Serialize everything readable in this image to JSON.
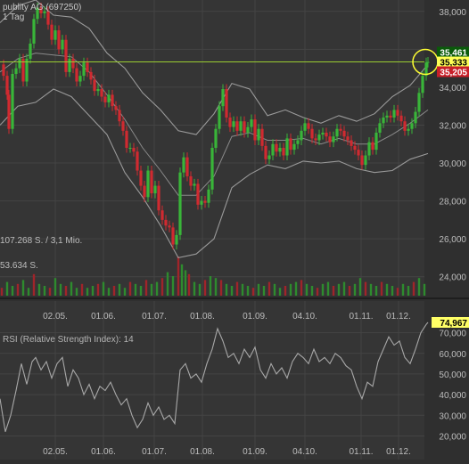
{
  "chart_data": [
    {
      "type": "candlestick",
      "title": "publity AG (697250)",
      "subtitle": "1 Tag",
      "x_ticks": [
        "02.05.",
        "01.06.",
        "01.07.",
        "01.08.",
        "01.09.",
        "04.10.",
        "01.11.",
        "01.12."
      ],
      "y_ticks": [
        "24,000",
        "26,000",
        "28,000",
        "30,000",
        "32,000",
        "34,000",
        "36,000",
        "38,000"
      ],
      "ylim": [
        23000,
        38600
      ],
      "price_labels": {
        "high": {
          "text": "35,461",
          "value": 35461,
          "color": "#0a5a0a"
        },
        "last": {
          "text": "35,333",
          "value": 35333,
          "color": "#ffff55"
        },
        "low": {
          "text": "35,205",
          "value": 35205,
          "color": "#c81e28"
        }
      },
      "reference_line": {
        "value": 35333,
        "color": "#9acd32"
      },
      "volume_labels": [
        "107.268 S. / 3,1 Mio.",
        "53.634 S."
      ],
      "price_path": [
        [
          0,
          35200
        ],
        [
          4,
          34600
        ],
        [
          8,
          33600
        ],
        [
          10,
          31800
        ],
        [
          14,
          34700
        ],
        [
          18,
          35000
        ],
        [
          22,
          35500
        ],
        [
          26,
          34300
        ],
        [
          30,
          35500
        ],
        [
          34,
          36300
        ],
        [
          38,
          37600
        ],
        [
          42,
          38200
        ],
        [
          46,
          37900
        ],
        [
          50,
          38000
        ],
        [
          54,
          37300
        ],
        [
          58,
          36500
        ],
        [
          62,
          37000
        ],
        [
          66,
          36000
        ],
        [
          70,
          36500
        ],
        [
          74,
          34800
        ],
        [
          78,
          35500
        ],
        [
          82,
          35000
        ],
        [
          86,
          34300
        ],
        [
          90,
          34600
        ],
        [
          94,
          35300
        ],
        [
          98,
          34800
        ],
        [
          102,
          34400
        ],
        [
          106,
          33800
        ],
        [
          110,
          33900
        ],
        [
          114,
          33500
        ],
        [
          118,
          33200
        ],
        [
          122,
          33600
        ],
        [
          126,
          33000
        ],
        [
          130,
          32800
        ],
        [
          134,
          32200
        ],
        [
          138,
          31700
        ],
        [
          142,
          30800
        ],
        [
          146,
          30800
        ],
        [
          150,
          30600
        ],
        [
          154,
          29600
        ],
        [
          158,
          28800
        ],
        [
          162,
          28200
        ],
        [
          166,
          29600
        ],
        [
          170,
          28400
        ],
        [
          174,
          28800
        ],
        [
          178,
          27500
        ],
        [
          182,
          27000
        ],
        [
          186,
          26700
        ],
        [
          190,
          26600
        ],
        [
          194,
          25700
        ],
        [
          198,
          26200
        ],
        [
          202,
          29500
        ],
        [
          206,
          30300
        ],
        [
          210,
          29300
        ],
        [
          214,
          28800
        ],
        [
          218,
          28900
        ],
        [
          222,
          27800
        ],
        [
          226,
          28000
        ],
        [
          230,
          27900
        ],
        [
          234,
          28600
        ],
        [
          238,
          30800
        ],
        [
          242,
          31800
        ],
        [
          246,
          33000
        ],
        [
          250,
          33900
        ],
        [
          254,
          32400
        ],
        [
          258,
          31900
        ],
        [
          262,
          32200
        ],
        [
          266,
          31700
        ],
        [
          270,
          32200
        ],
        [
          274,
          31600
        ],
        [
          278,
          31900
        ],
        [
          282,
          32300
        ],
        [
          286,
          31200
        ],
        [
          290,
          31800
        ],
        [
          294,
          30900
        ],
        [
          298,
          30200
        ],
        [
          302,
          30400
        ],
        [
          306,
          31000
        ],
        [
          310,
          30600
        ],
        [
          314,
          30800
        ],
        [
          318,
          30400
        ],
        [
          322,
          31300
        ],
        [
          326,
          30700
        ],
        [
          330,
          31000
        ],
        [
          334,
          31200
        ],
        [
          338,
          31700
        ],
        [
          342,
          32100
        ],
        [
          346,
          31800
        ],
        [
          350,
          31300
        ],
        [
          354,
          31200
        ],
        [
          358,
          31500
        ],
        [
          362,
          31600
        ],
        [
          366,
          31400
        ],
        [
          370,
          31100
        ],
        [
          374,
          31400
        ],
        [
          378,
          31800
        ],
        [
          382,
          31700
        ],
        [
          386,
          31400
        ],
        [
          390,
          31200
        ],
        [
          394,
          30900
        ],
        [
          398,
          30700
        ],
        [
          402,
          30400
        ],
        [
          406,
          29900
        ],
        [
          410,
          30400
        ],
        [
          414,
          31100
        ],
        [
          418,
          30700
        ],
        [
          422,
          31600
        ],
        [
          426,
          32100
        ],
        [
          430,
          32400
        ],
        [
          434,
          32500
        ],
        [
          438,
          32400
        ],
        [
          442,
          32800
        ],
        [
          446,
          32500
        ],
        [
          450,
          32200
        ],
        [
          454,
          31700
        ],
        [
          458,
          31800
        ],
        [
          462,
          32100
        ],
        [
          466,
          32700
        ],
        [
          470,
          33700
        ],
        [
          474,
          34600
        ],
        [
          478,
          35300
        ],
        [
          480,
          35333
        ]
      ],
      "bollinger_upper": [
        [
          0,
          37400
        ],
        [
          20,
          38300
        ],
        [
          40,
          38600
        ],
        [
          60,
          37800
        ],
        [
          80,
          37700
        ],
        [
          100,
          37100
        ],
        [
          120,
          35800
        ],
        [
          140,
          35000
        ],
        [
          160,
          33700
        ],
        [
          180,
          32800
        ],
        [
          200,
          31700
        ],
        [
          220,
          31500
        ],
        [
          240,
          32600
        ],
        [
          260,
          34200
        ],
        [
          280,
          33900
        ],
        [
          300,
          32500
        ],
        [
          320,
          32800
        ],
        [
          340,
          32400
        ],
        [
          360,
          32100
        ],
        [
          380,
          32500
        ],
        [
          400,
          32200
        ],
        [
          420,
          32600
        ],
        [
          440,
          33500
        ],
        [
          460,
          34100
        ],
        [
          480,
          35200
        ]
      ],
      "bollinger_lower": [
        [
          0,
          32000
        ],
        [
          20,
          33000
        ],
        [
          40,
          33200
        ],
        [
          60,
          33900
        ],
        [
          80,
          33500
        ],
        [
          100,
          32500
        ],
        [
          120,
          31500
        ],
        [
          140,
          29500
        ],
        [
          160,
          28200
        ],
        [
          180,
          26700
        ],
        [
          200,
          25000
        ],
        [
          220,
          25200
        ],
        [
          240,
          26000
        ],
        [
          260,
          28700
        ],
        [
          280,
          29400
        ],
        [
          300,
          29900
        ],
        [
          320,
          29700
        ],
        [
          340,
          30100
        ],
        [
          360,
          30000
        ],
        [
          380,
          30100
        ],
        [
          400,
          29700
        ],
        [
          420,
          29500
        ],
        [
          440,
          29600
        ],
        [
          460,
          30200
        ],
        [
          480,
          30500
        ]
      ],
      "bollinger_middle": [
        [
          0,
          34800
        ],
        [
          20,
          35500
        ],
        [
          40,
          35800
        ],
        [
          60,
          35700
        ],
        [
          80,
          35600
        ],
        [
          100,
          34800
        ],
        [
          120,
          33600
        ],
        [
          140,
          32300
        ],
        [
          160,
          30800
        ],
        [
          180,
          29600
        ],
        [
          200,
          28300
        ],
        [
          220,
          28300
        ],
        [
          240,
          29300
        ],
        [
          260,
          31400
        ],
        [
          280,
          31600
        ],
        [
          300,
          31200
        ],
        [
          320,
          31200
        ],
        [
          340,
          31300
        ],
        [
          360,
          31000
        ],
        [
          380,
          31300
        ],
        [
          400,
          31000
        ],
        [
          420,
          31000
        ],
        [
          440,
          31500
        ],
        [
          460,
          32100
        ],
        [
          480,
          32800
        ]
      ],
      "volume": [
        [
          2,
          0.2
        ],
        [
          8,
          0.35
        ],
        [
          14,
          0.25
        ],
        [
          20,
          0.3
        ],
        [
          26,
          0.4
        ],
        [
          32,
          0.2
        ],
        [
          38,
          0.55
        ],
        [
          44,
          0.3
        ],
        [
          50,
          0.25
        ],
        [
          56,
          0.2
        ],
        [
          62,
          0.45
        ],
        [
          68,
          0.3
        ],
        [
          74,
          0.25
        ],
        [
          80,
          0.35
        ],
        [
          86,
          0.2
        ],
        [
          92,
          0.3
        ],
        [
          98,
          0.2
        ],
        [
          104,
          0.25
        ],
        [
          110,
          0.3
        ],
        [
          116,
          0.35
        ],
        [
          122,
          0.2
        ],
        [
          128,
          0.25
        ],
        [
          134,
          0.3
        ],
        [
          140,
          0.2
        ],
        [
          146,
          0.35
        ],
        [
          152,
          0.3
        ],
        [
          158,
          0.25
        ],
        [
          164,
          0.4
        ],
        [
          170,
          0.3
        ],
        [
          176,
          0.35
        ],
        [
          182,
          0.45
        ],
        [
          188,
          0.6
        ],
        [
          194,
          0.5
        ],
        [
          200,
          1.0
        ],
        [
          204,
          0.8
        ],
        [
          208,
          0.65
        ],
        [
          212,
          0.55
        ],
        [
          218,
          0.35
        ],
        [
          224,
          0.3
        ],
        [
          230,
          0.4
        ],
        [
          236,
          0.5
        ],
        [
          242,
          0.45
        ],
        [
          248,
          0.4
        ],
        [
          254,
          0.3
        ],
        [
          260,
          0.25
        ],
        [
          266,
          0.35
        ],
        [
          272,
          0.3
        ],
        [
          278,
          0.25
        ],
        [
          284,
          0.2
        ],
        [
          290,
          0.3
        ],
        [
          296,
          0.25
        ],
        [
          302,
          0.35
        ],
        [
          308,
          0.3
        ],
        [
          314,
          0.2
        ],
        [
          320,
          0.25
        ],
        [
          326,
          0.3
        ],
        [
          332,
          0.35
        ],
        [
          338,
          0.4
        ],
        [
          344,
          0.3
        ],
        [
          350,
          0.25
        ],
        [
          356,
          0.2
        ],
        [
          362,
          0.3
        ],
        [
          368,
          0.35
        ],
        [
          374,
          0.25
        ],
        [
          380,
          0.3
        ],
        [
          386,
          0.35
        ],
        [
          392,
          0.25
        ],
        [
          398,
          0.3
        ],
        [
          404,
          0.45
        ],
        [
          410,
          0.35
        ],
        [
          416,
          0.3
        ],
        [
          422,
          0.25
        ],
        [
          428,
          0.35
        ],
        [
          434,
          0.3
        ],
        [
          440,
          0.25
        ],
        [
          446,
          0.2
        ],
        [
          452,
          0.3
        ],
        [
          458,
          0.25
        ],
        [
          464,
          0.35
        ],
        [
          470,
          0.45
        ],
        [
          476,
          0.3
        ]
      ]
    },
    {
      "type": "line",
      "title": "RSI (Relative Strength Index): 14",
      "x_ticks": [
        "02.05.",
        "01.06.",
        "01.07.",
        "01.08.",
        "01.09.",
        "04.10.",
        "01.11.",
        "01.12."
      ],
      "y_ticks": [
        "20,000",
        "30,000",
        "40,000",
        "50,000",
        "60,000",
        "70,000"
      ],
      "ylim": [
        12,
        75
      ],
      "last_value_label": "74,967",
      "series": [
        [
          0,
          38
        ],
        [
          6,
          22
        ],
        [
          12,
          30
        ],
        [
          18,
          42
        ],
        [
          24,
          55
        ],
        [
          30,
          45
        ],
        [
          36,
          56
        ],
        [
          40,
          58
        ],
        [
          46,
          52
        ],
        [
          52,
          56
        ],
        [
          58,
          48
        ],
        [
          64,
          55
        ],
        [
          70,
          58
        ],
        [
          76,
          44
        ],
        [
          82,
          52
        ],
        [
          88,
          48
        ],
        [
          94,
          40
        ],
        [
          100,
          45
        ],
        [
          106,
          38
        ],
        [
          112,
          44
        ],
        [
          118,
          42
        ],
        [
          124,
          46
        ],
        [
          130,
          40
        ],
        [
          136,
          35
        ],
        [
          142,
          38
        ],
        [
          148,
          30
        ],
        [
          154,
          24
        ],
        [
          160,
          28
        ],
        [
          166,
          36
        ],
        [
          172,
          30
        ],
        [
          178,
          34
        ],
        [
          184,
          28
        ],
        [
          190,
          30
        ],
        [
          196,
          26
        ],
        [
          202,
          52
        ],
        [
          208,
          55
        ],
        [
          214,
          48
        ],
        [
          220,
          50
        ],
        [
          226,
          46
        ],
        [
          232,
          55
        ],
        [
          238,
          62
        ],
        [
          244,
          72
        ],
        [
          250,
          66
        ],
        [
          256,
          58
        ],
        [
          262,
          60
        ],
        [
          268,
          55
        ],
        [
          274,
          62
        ],
        [
          280,
          58
        ],
        [
          286,
          63
        ],
        [
          292,
          52
        ],
        [
          298,
          48
        ],
        [
          304,
          55
        ],
        [
          310,
          50
        ],
        [
          316,
          53
        ],
        [
          322,
          48
        ],
        [
          328,
          56
        ],
        [
          334,
          60
        ],
        [
          340,
          58
        ],
        [
          346,
          55
        ],
        [
          352,
          62
        ],
        [
          358,
          56
        ],
        [
          364,
          58
        ],
        [
          370,
          55
        ],
        [
          376,
          60
        ],
        [
          382,
          58
        ],
        [
          388,
          54
        ],
        [
          394,
          52
        ],
        [
          400,
          44
        ],
        [
          406,
          38
        ],
        [
          412,
          46
        ],
        [
          418,
          44
        ],
        [
          424,
          56
        ],
        [
          430,
          62
        ],
        [
          436,
          68
        ],
        [
          442,
          64
        ],
        [
          448,
          66
        ],
        [
          454,
          58
        ],
        [
          460,
          55
        ],
        [
          466,
          62
        ],
        [
          472,
          70
        ],
        [
          478,
          74
        ],
        [
          480,
          75
        ]
      ]
    }
  ]
}
